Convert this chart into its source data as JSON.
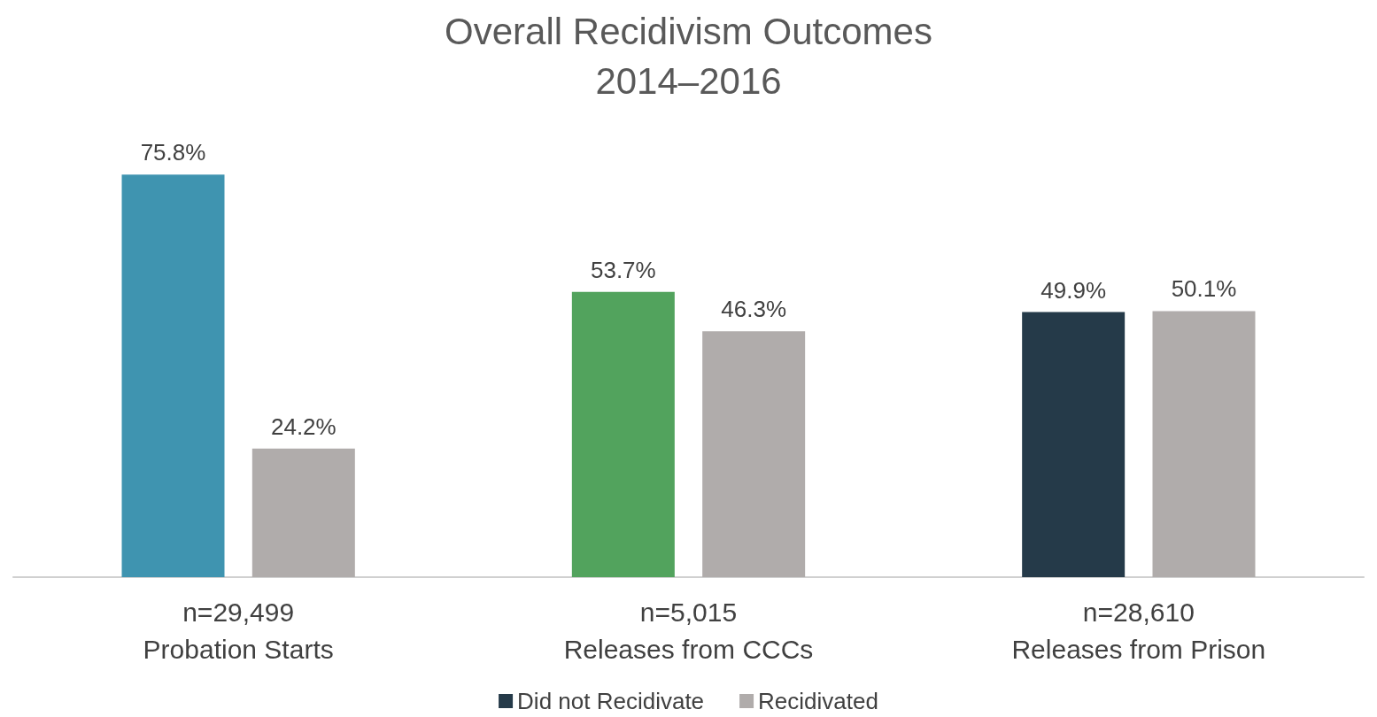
{
  "chart_data": {
    "type": "bar",
    "title": "Overall Recidivism Outcomes\n2014–2016",
    "categories": [
      "n=29,499\nProbation Starts",
      "n=5,015\nReleases from CCCs",
      "n=28,610\nReleases from Prison"
    ],
    "series": [
      {
        "name": "Did not Recidivate",
        "color": "#253a49",
        "colors": [
          "#3f94b0",
          "#52a35d",
          "#253a49"
        ],
        "values": [
          75.8,
          53.7,
          49.9
        ],
        "value_labels": [
          "75.8%",
          "53.7%",
          "49.9%"
        ]
      },
      {
        "name": "Recidivated",
        "color": "#b0acab",
        "values": [
          24.2,
          46.3,
          50.1
        ],
        "value_labels": [
          "24.2%",
          "46.3%",
          "50.1%"
        ]
      }
    ],
    "legend": "bottom"
  }
}
